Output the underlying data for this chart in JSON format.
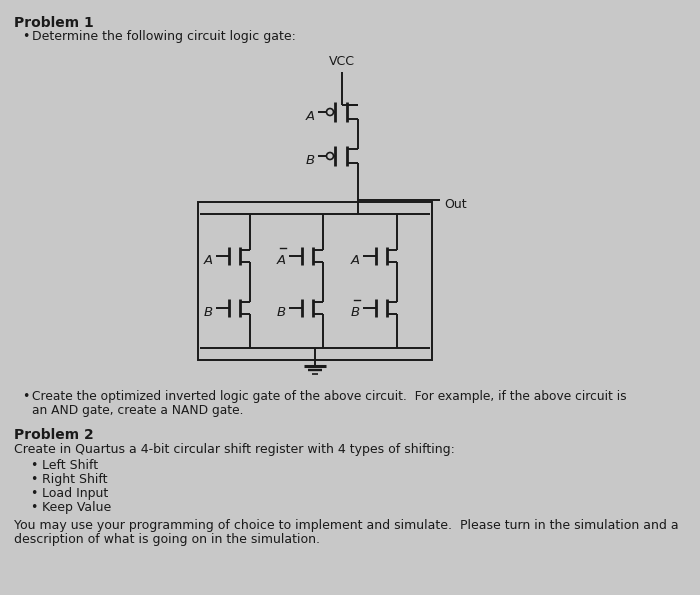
{
  "bg_color": "#c8c8c8",
  "line_color": "#1a1a1a",
  "text_color": "#1a1a1a",
  "vcc_label": "VCC",
  "out_label": "Out",
  "prob1_title": "Problem 1",
  "prob1_bullet": "Determine the following circuit logic gate:",
  "bullet1_line1": "Create the optimized inverted logic gate of the above circuit.  For example, if the above circuit is",
  "bullet1_line2": "an AND gate, create a NAND gate.",
  "prob2_title": "Problem 2",
  "prob2_intro": "Create in Quartus a 4-bit circular shift register with 4 types of shifting:",
  "prob2_items": [
    "Left Shift",
    "Right Shift",
    "Load Input",
    "Keep Value"
  ],
  "prob2_footer1": "You may use your programming of choice to implement and simulate.  Please turn in the simulation and a",
  "prob2_footer2": "description of what is going on in the simulation.",
  "figsize": [
    7.0,
    5.95
  ],
  "dpi": 100
}
